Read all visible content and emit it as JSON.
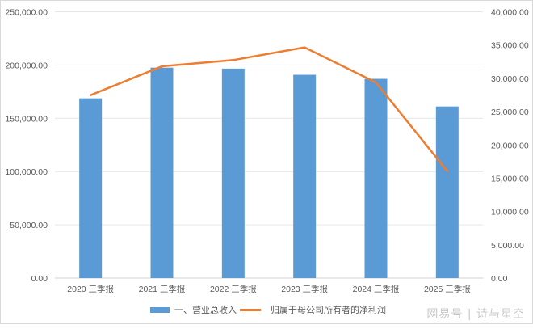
{
  "chart_data": {
    "type": "bar+line",
    "title": "",
    "categories": [
      "2020 三季报",
      "2021 三季报",
      "2022 三季报",
      "2023 三季报",
      "2024 三季报",
      "2025 三季报"
    ],
    "series": [
      {
        "name": "一、营业总收入",
        "type": "bar",
        "axis": "left",
        "color": "#5b9bd5",
        "values": [
          168700,
          197500,
          196600,
          190800,
          187000,
          161100
        ]
      },
      {
        "name": "归属于母公司所有者的净利润",
        "type": "line",
        "axis": "right",
        "color": "#ed7d31",
        "values": [
          27470,
          31800,
          32740,
          34640,
          29380,
          16060
        ]
      }
    ],
    "left_axis": {
      "ylim": [
        0,
        250000
      ],
      "ticks": [
        "0.00",
        "50,000.00",
        "100,000.00",
        "150,000.00",
        "200,000.00",
        "250,000.00"
      ]
    },
    "right_axis": {
      "ylim": [
        0,
        40000
      ],
      "ticks": [
        "0.00",
        "5,000.00",
        "10,000.00",
        "15,000.00",
        "20,000.00",
        "25,000.00",
        "30,000.00",
        "35,000.00",
        "40,000.00"
      ]
    },
    "xlabel": "",
    "ylabel": "",
    "grid": true,
    "legend_position": "bottom"
  },
  "legend": {
    "bar_label": "一、营业总收入",
    "line_label": "归属于母公司所有者的净利润"
  },
  "watermark": "网易号 | 诗与星空"
}
